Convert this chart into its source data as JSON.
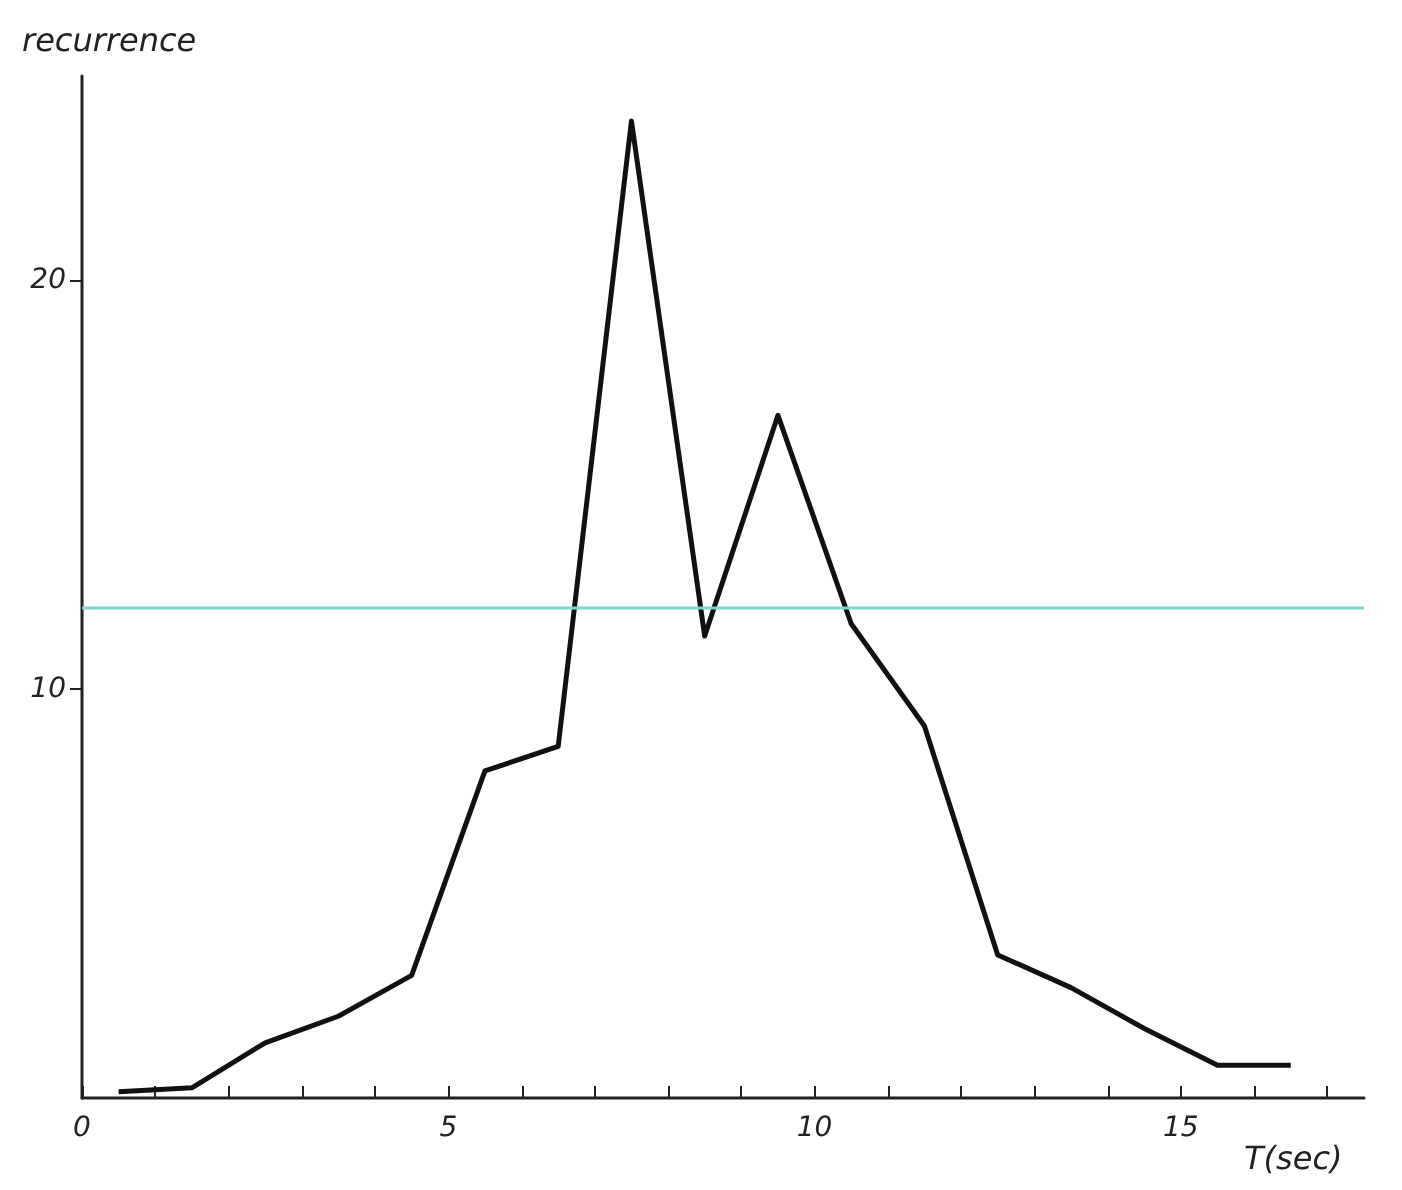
{
  "chart_data": {
    "type": "line",
    "ylabel": "recurrence",
    "xlabel": "T(sec)",
    "x": [
      0.5,
      1.5,
      2.5,
      3.5,
      4.5,
      5.5,
      6.5,
      7.5,
      8.5,
      9.5,
      10.5,
      11.5,
      12.5,
      13.5,
      14.5,
      15.5,
      16.5
    ],
    "series": [
      {
        "color": "#111111",
        "values": [
          0.15,
          0.25,
          1.35,
          2.0,
          3.0,
          8.0,
          8.6,
          23.9,
          11.3,
          16.7,
          11.6,
          9.1,
          3.5,
          2.7,
          1.7,
          0.8,
          0.8
        ]
      }
    ],
    "xlim": [
      0,
      17.5
    ],
    "xticks": [
      0,
      {
        "value": 1,
        "label": null
      },
      {
        "value": 2,
        "label": null
      },
      {
        "value": 3,
        "label": null
      },
      {
        "value": 4,
        "label": null
      },
      5,
      {
        "value": 6,
        "label": null
      },
      {
        "value": 7,
        "label": null
      },
      {
        "value": 8,
        "label": null
      },
      {
        "value": 9,
        "label": null
      },
      10,
      {
        "value": 11,
        "label": null
      },
      {
        "value": 12,
        "label": null
      },
      {
        "value": 13,
        "label": null
      },
      {
        "value": 14,
        "label": null
      },
      15,
      {
        "value": 16,
        "label": null
      },
      {
        "value": 17,
        "label": null
      }
    ],
    "ylim": [
      0,
      25
    ],
    "yticks": [
      10,
      20
    ],
    "ref_lines": [
      {
        "axis": "y",
        "value": 12,
        "color": "#7fd8c8"
      }
    ],
    "grid": false,
    "marker": "none",
    "line_style": "solid"
  }
}
